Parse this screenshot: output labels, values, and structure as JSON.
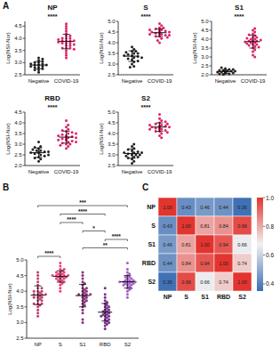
{
  "panel_labels": [
    "A",
    "B",
    "C"
  ],
  "chart_data": [
    {
      "type": "strip",
      "title": "NP",
      "y_label": "Log(NSI-Nor)",
      "categories": [
        "Negative",
        "COVID-19"
      ],
      "colors": [
        "#222222",
        "#e0206a"
      ],
      "values": [
        [
          2.9,
          2.8,
          3.0,
          2.7,
          2.85,
          2.95,
          3.1,
          2.75,
          2.9,
          3.05,
          2.8,
          2.6,
          3.2,
          2.9,
          2.85,
          3.0,
          2.95,
          2.7,
          3.15,
          2.9
        ],
        [
          3.9,
          3.6,
          4.2,
          3.8,
          4.5,
          3.7,
          4.0,
          3.5,
          3.9,
          4.1,
          3.3,
          3.8,
          4.3,
          3.6,
          3.9,
          4.0,
          3.4,
          3.7,
          4.4,
          3.8,
          3.9,
          3.2,
          4.1,
          3.6,
          3.95,
          3.75,
          4.0,
          3.85,
          3.55,
          4.6
        ]
      ],
      "means": [
        2.9,
        3.87
      ],
      "errors": [
        0.15,
        0.3
      ],
      "annotation": "****",
      "ylim": [
        2.5,
        4.7
      ],
      "yticks": [
        2.5,
        {
          "value": 3,
          "label": "3.0"
        },
        3.5,
        {
          "value": 4,
          "label": "4.0"
        },
        4.5
      ]
    },
    {
      "type": "strip",
      "title": "S",
      "y_label": "Log(NSI-Nor)",
      "categories": [
        "Negative",
        "COVID-19"
      ],
      "colors": [
        "#222222",
        "#e0206a"
      ],
      "values": [
        [
          3.4,
          3.2,
          3.6,
          3.0,
          3.5,
          3.3,
          3.8,
          3.1,
          3.45,
          3.35,
          2.9,
          3.6,
          3.25,
          3.5,
          3.7,
          3.15,
          3.4,
          2.85,
          3.55,
          3.3
        ],
        [
          4.5,
          4.4,
          4.6,
          4.3,
          4.7,
          4.45,
          4.55,
          4.2,
          4.5,
          4.35,
          4.65,
          4.5,
          4.0,
          4.4,
          4.6,
          4.8,
          4.45,
          4.5,
          4.3,
          4.55,
          4.4,
          4.9,
          4.5,
          4.25,
          4.6,
          4.45,
          4.35,
          4.5,
          4.7,
          4.1
        ]
      ],
      "means": [
        3.37,
        4.47
      ],
      "errors": [
        0.25,
        0.18
      ],
      "annotation": "****",
      "ylim": [
        2.5,
        5.0
      ],
      "yticks": [
        2.5,
        {
          "value": 3,
          "label": "3.0"
        },
        3.5,
        {
          "value": 4,
          "label": "4.0"
        },
        4.5,
        {
          "value": 5,
          "label": "5.0"
        }
      ]
    },
    {
      "type": "strip",
      "title": "S1",
      "y_label": "Log(NSI-Nor)",
      "categories": [
        "Negative",
        "COVID-19"
      ],
      "colors": [
        "#222222",
        "#e0206a"
      ],
      "values": [
        [
          2.1,
          2.2,
          2.15,
          2.05,
          2.25,
          2.3,
          2.1,
          2.2,
          2.0,
          2.15,
          2.35,
          2.2,
          2.1,
          2.25,
          2.4,
          2.15,
          2.05,
          2.2,
          2.3,
          2.1
        ],
        [
          3.9,
          3.7,
          4.1,
          3.5,
          4.3,
          3.8,
          4.0,
          3.3,
          3.9,
          4.2,
          3.6,
          4.5,
          3.1,
          3.8,
          4.0,
          3.7,
          4.4,
          3.9,
          3.4,
          4.1,
          3.95,
          3.0,
          4.6,
          3.75,
          3.85,
          4.05,
          3.65,
          3.9,
          4.25,
          3.55
        ]
      ],
      "means": [
        2.18,
        3.86
      ],
      "errors": [
        0.1,
        0.36
      ],
      "annotation": "****",
      "ylim": [
        2.0,
        5.0
      ],
      "yticks": [
        {
          "value": 2,
          "label": "2.0"
        },
        2.5,
        {
          "value": 3,
          "label": "3.0"
        },
        3.5,
        {
          "value": 4,
          "label": "4.0"
        },
        4.5,
        {
          "value": 5,
          "label": "5.0"
        }
      ]
    },
    {
      "type": "strip",
      "title": "RBD",
      "y_label": "Log(NSI-Nor)",
      "categories": [
        "Negative",
        "COVID-19"
      ],
      "colors": [
        "#222222",
        "#e0206a"
      ],
      "values": [
        [
          2.6,
          2.5,
          2.7,
          2.4,
          2.8,
          2.55,
          2.65,
          2.3,
          2.9,
          2.6,
          2.45,
          3.1,
          2.2,
          2.7,
          2.5,
          2.75,
          2.6,
          2.35,
          2.85,
          2.65
        ],
        [
          3.2,
          3.0,
          3.4,
          3.6,
          2.9,
          3.3,
          3.1,
          3.8,
          3.25,
          3.5,
          3.15,
          3.7,
          2.8,
          3.35,
          3.05,
          3.45,
          3.9,
          3.2,
          3.0,
          3.55,
          3.3,
          4.1,
          3.1,
          3.4,
          3.25,
          3.65,
          2.95,
          3.35,
          3.5,
          3.2
        ]
      ],
      "means": [
        2.6,
        3.33
      ],
      "errors": [
        0.22,
        0.28
      ],
      "annotation": "****",
      "ylim": [
        2.0,
        4.5
      ],
      "yticks": [
        {
          "value": 2,
          "label": "2.0"
        },
        2.5,
        {
          "value": 3,
          "label": "3.0"
        },
        3.5,
        {
          "value": 4,
          "label": "4.0"
        },
        4.5
      ]
    },
    {
      "type": "strip",
      "title": "S2",
      "y_label": "Log(NSI-Nor)",
      "categories": [
        "Negative",
        "COVID-19"
      ],
      "colors": [
        "#222222",
        "#e0206a"
      ],
      "values": [
        [
          3.0,
          3.1,
          2.8,
          3.2,
          2.9,
          3.05,
          3.3,
          2.7,
          3.15,
          3.0,
          2.95,
          3.4,
          2.6,
          3.1,
          3.25,
          2.85,
          3.0,
          3.5,
          2.9,
          3.1
        ],
        [
          4.3,
          4.2,
          4.4,
          4.1,
          4.5,
          4.25,
          4.35,
          4.0,
          4.6,
          4.3,
          4.15,
          4.45,
          3.9,
          4.3,
          4.2,
          4.7,
          4.35,
          4.1,
          4.9,
          4.25,
          4.4,
          3.8,
          4.3,
          4.55,
          4.2,
          4.35,
          4.05,
          4.3,
          4.45,
          4.25
        ]
      ],
      "means": [
        3.06,
        4.3
      ],
      "errors": [
        0.22,
        0.2
      ],
      "annotation": "****",
      "ylim": [
        2.5,
        5.0
      ],
      "yticks": [
        2.5,
        {
          "value": 3,
          "label": "3.0"
        },
        3.5,
        {
          "value": 4,
          "label": "4.0"
        },
        4.5,
        {
          "value": 5,
          "label": "5.0"
        }
      ]
    },
    {
      "type": "strip",
      "y_label": "Log(NSI-Nor)",
      "categories": [
        "NP",
        "S",
        "S1",
        "RBD",
        "S2"
      ],
      "colors": [
        "#c23b72",
        "#e8407c",
        "#8b2f7c",
        "#7a2e8e",
        "#a45ec8"
      ],
      "values": [
        [
          3.9,
          3.6,
          4.2,
          3.8,
          4.5,
          3.7,
          4.0,
          3.5,
          3.9,
          4.1,
          3.3,
          3.8,
          4.3,
          3.6,
          3.9,
          4.0,
          3.4,
          3.7,
          4.4,
          3.8,
          3.9,
          3.2,
          4.1,
          3.6,
          3.95,
          3.75,
          4.0,
          3.85,
          3.55,
          4.6
        ],
        [
          4.5,
          4.4,
          4.6,
          4.3,
          4.7,
          4.45,
          4.55,
          4.2,
          4.5,
          4.35,
          4.65,
          4.5,
          4.0,
          4.4,
          4.6,
          4.8,
          4.45,
          4.5,
          4.3,
          4.55,
          4.4,
          4.9,
          4.5,
          4.25,
          4.6,
          4.45,
          4.35,
          4.5,
          4.7,
          4.1
        ],
        [
          3.9,
          3.7,
          4.1,
          3.5,
          4.3,
          3.8,
          4.0,
          3.3,
          3.9,
          4.2,
          3.6,
          4.5,
          3.1,
          3.8,
          4.0,
          3.7,
          4.4,
          3.9,
          3.4,
          4.1,
          3.95,
          3.0,
          4.6,
          3.75,
          3.85,
          4.05,
          3.65,
          3.9,
          4.25,
          3.55
        ],
        [
          3.2,
          3.0,
          3.4,
          3.6,
          2.9,
          3.3,
          3.1,
          3.8,
          3.25,
          3.5,
          3.15,
          3.7,
          2.8,
          3.35,
          3.05,
          3.45,
          3.9,
          3.2,
          3.0,
          3.55,
          3.3,
          4.1,
          3.1,
          3.4,
          3.25,
          3.65,
          2.95,
          3.35,
          3.5,
          3.2
        ],
        [
          4.3,
          4.2,
          4.4,
          4.1,
          4.5,
          4.25,
          4.35,
          4.0,
          4.6,
          4.3,
          4.15,
          4.45,
          3.9,
          4.3,
          4.2,
          4.7,
          4.35,
          4.1,
          4.9,
          4.25,
          4.4,
          3.8,
          4.3,
          4.55,
          4.2,
          4.35,
          4.05,
          4.3,
          4.45,
          4.25
        ]
      ],
      "means": [
        3.87,
        4.47,
        3.86,
        3.33,
        4.3
      ],
      "errors": [
        0.3,
        0.18,
        0.36,
        0.28,
        0.2
      ],
      "comparisons": [
        {
          "from": 0,
          "to": 4,
          "label": "***"
        },
        {
          "from": 1,
          "to": 3,
          "label": "****"
        },
        {
          "from": 1,
          "to": 2,
          "label": "****"
        },
        {
          "from": 2,
          "to": 3,
          "label": "*"
        },
        {
          "from": 3,
          "to": 4,
          "label": "****"
        },
        {
          "from": 2,
          "to": 4,
          "label": "**"
        },
        {
          "from": 0,
          "to": 1,
          "label": "****"
        }
      ],
      "ylim": [
        2.5,
        5.0
      ],
      "yticks": [
        2.5,
        {
          "value": 3,
          "label": "3.0"
        },
        3.5,
        {
          "value": 4,
          "label": "4.0"
        },
        4.5,
        {
          "value": 5,
          "label": "5.0"
        }
      ]
    },
    {
      "type": "heatmap",
      "categories": [
        "NP",
        "S",
        "S1",
        "RBD",
        "S2"
      ],
      "cells": [
        [
          1.0,
          0.43,
          0.46,
          0.44,
          0.36
        ],
        [
          0.43,
          1.0,
          0.81,
          0.84,
          0.96
        ],
        [
          0.46,
          0.81,
          1.0,
          0.94,
          0.66
        ],
        [
          0.44,
          0.84,
          0.94,
          1.0,
          0.74
        ],
        [
          0.36,
          0.96,
          0.66,
          0.74,
          1.0
        ]
      ],
      "value_labels": [
        [
          "1.00",
          "0.43",
          "0.46",
          "0.44",
          "0.36"
        ],
        [
          "0.43",
          "1.00",
          "0.81",
          "0.84",
          "0.96"
        ],
        [
          "0.46",
          "0.81",
          "1.00",
          "0.94",
          "0.66"
        ],
        [
          "0.44",
          "0.84",
          "0.94",
          "1.00",
          "0.74"
        ],
        [
          "0.36",
          "0.96",
          "0.66",
          "0.74",
          "1.00"
        ]
      ],
      "colors": [
        "#3b6db3",
        "#f2f2f2",
        "#e3342f"
      ],
      "colorbar_range": [
        0.35,
        1.0
      ],
      "colorbar_ticks": [
        0.4,
        0.6,
        0.8,
        {
          "value": 1,
          "label": "1.0"
        }
      ]
    }
  ]
}
